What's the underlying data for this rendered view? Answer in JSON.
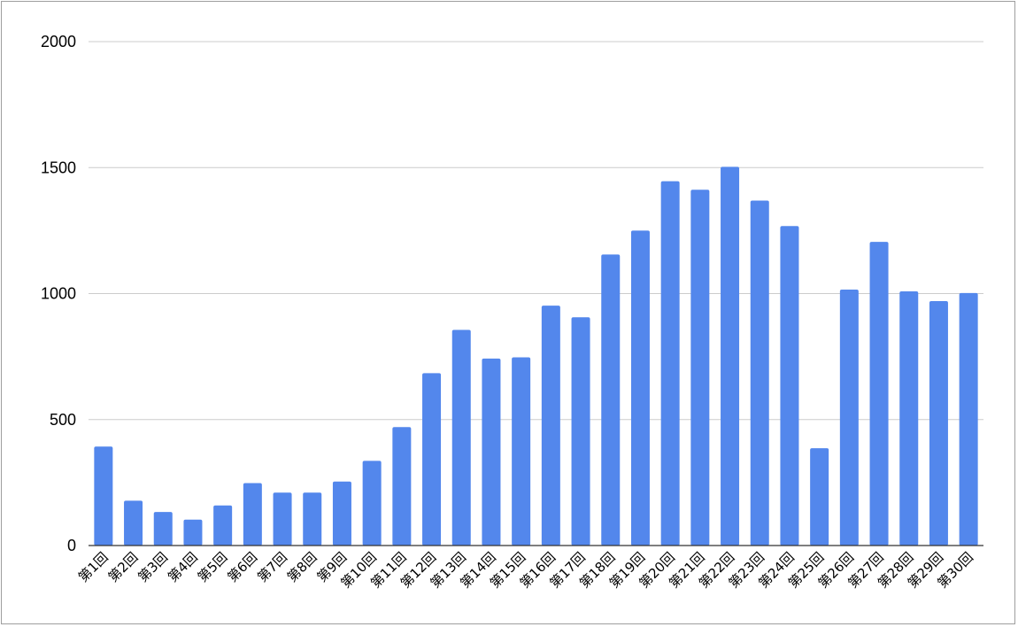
{
  "chart_data": {
    "type": "bar",
    "title": "",
    "xlabel": "",
    "ylabel": "",
    "ylim": [
      0,
      2000
    ],
    "yticks": [
      0,
      500,
      1000,
      1500,
      2000
    ],
    "grid": true,
    "bar_color": "#5387ec",
    "grid_color": "#cccccc",
    "axis_color": "#333333",
    "categories": [
      "第1回",
      "第2回",
      "第3回",
      "第4回",
      "第5回",
      "第6回",
      "第7回",
      "第8回",
      "第9回",
      "第10回",
      "第11回",
      "第12回",
      "第13回",
      "第14回",
      "第15回",
      "第16回",
      "第17回",
      "第18回",
      "第19回",
      "第20回",
      "第21回",
      "第22回",
      "第23回",
      "第24回",
      "第25回",
      "第26回",
      "第27回",
      "第28回",
      "第29回",
      "第30回"
    ],
    "values": [
      393,
      178,
      133,
      103,
      159,
      248,
      210,
      210,
      254,
      336,
      470,
      684,
      856,
      742,
      747,
      952,
      906,
      1155,
      1250,
      1446,
      1412,
      1503,
      1369,
      1268,
      386,
      1016,
      1205,
      1009,
      970,
      1002
    ]
  }
}
